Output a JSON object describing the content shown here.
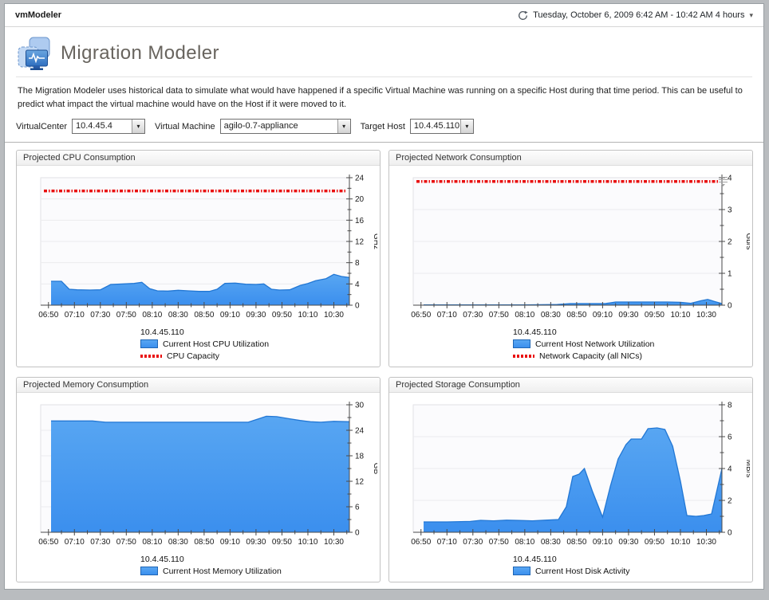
{
  "window": {
    "app_title": "vmModeler",
    "date_range": "Tuesday, October 6, 2009 6:42 AM - 10:42 AM 4 hours"
  },
  "icons": {
    "caret": "▾",
    "time_range": "clock-refresh-icon",
    "chart_options": "chart-options-menu-icon",
    "app": "migration-modeler-monitor-icon"
  },
  "header": {
    "title": "Migration Modeler",
    "description": "The Migration Modeler uses historical data to simulate what would have happened if a specific Virtual Machine was running on a specific Host during that time period. This can be useful to predict what impact the virtual machine would have on the Host if it were moved to it."
  },
  "controls": {
    "virtualcenter_label": "VirtualCenter",
    "virtualcenter_value": "10.4.45.4",
    "vm_label": "Virtual Machine",
    "vm_value": "agilo-0.7-appliance",
    "target_host_label": "Target Host",
    "target_host_value": "10.4.45.110"
  },
  "colors": {
    "area_fill_top": "#58a6f2",
    "area_fill_bottom": "#3b8fee",
    "area_stroke": "#2277d4",
    "capacity_red": "#e91010",
    "axis": "#4a4a4a",
    "grid": "#ebebee",
    "plot_bg": "#fbfbfd"
  },
  "chart_data": [
    {
      "id": "cpu",
      "type": "area",
      "panel_title": "Projected CPU Consumption",
      "unit": "GHz",
      "ylim": [
        0,
        24
      ],
      "y_major": 4,
      "y_minor": 2,
      "y_ticks": [
        0,
        4,
        8,
        12,
        16,
        20,
        24
      ],
      "x_start": "06:44",
      "x_end": "10:42",
      "x_ticks": [
        "06:50",
        "07:10",
        "07:30",
        "07:50",
        "08:10",
        "08:30",
        "08:50",
        "09:10",
        "09:30",
        "09:50",
        "10:10",
        "10:30"
      ],
      "capacity": 21.5,
      "series_label": "10.4.45.110",
      "legend": [
        {
          "swatch": "area",
          "label": "Current Host CPU Utilization"
        },
        {
          "swatch": "capacity",
          "label": "CPU Capacity"
        }
      ],
      "points": [
        [
          "06:52",
          4.5
        ],
        [
          "07:00",
          4.5
        ],
        [
          "07:06",
          3.0
        ],
        [
          "07:12",
          2.9
        ],
        [
          "07:22",
          2.85
        ],
        [
          "07:30",
          2.9
        ],
        [
          "07:38",
          3.9
        ],
        [
          "07:48",
          4.0
        ],
        [
          "07:56",
          4.1
        ],
        [
          "08:02",
          4.3
        ],
        [
          "08:08",
          3.1
        ],
        [
          "08:14",
          2.7
        ],
        [
          "08:22",
          2.65
        ],
        [
          "08:30",
          2.8
        ],
        [
          "08:38",
          2.7
        ],
        [
          "08:46",
          2.6
        ],
        [
          "08:54",
          2.6
        ],
        [
          "09:00",
          3.0
        ],
        [
          "09:06",
          4.1
        ],
        [
          "09:14",
          4.15
        ],
        [
          "09:22",
          3.95
        ],
        [
          "09:30",
          3.9
        ],
        [
          "09:36",
          4.0
        ],
        [
          "09:42",
          3.0
        ],
        [
          "09:48",
          2.85
        ],
        [
          "09:56",
          2.9
        ],
        [
          "10:04",
          3.7
        ],
        [
          "10:10",
          4.1
        ],
        [
          "10:16",
          4.6
        ],
        [
          "10:24",
          5.0
        ],
        [
          "10:30",
          5.8
        ],
        [
          "10:36",
          5.4
        ],
        [
          "10:42",
          5.2
        ]
      ]
    },
    {
      "id": "network",
      "type": "area",
      "panel_title": "Projected Network Consumption",
      "unit": "Gb/s",
      "ylim": [
        0,
        4
      ],
      "y_major": 1,
      "y_minor": 0.5,
      "y_ticks": [
        0,
        1,
        2,
        3,
        4
      ],
      "x_start": "06:44",
      "x_end": "10:42",
      "x_ticks": [
        "06:50",
        "07:10",
        "07:30",
        "07:50",
        "08:10",
        "08:30",
        "08:50",
        "09:10",
        "09:30",
        "09:50",
        "10:10",
        "10:30"
      ],
      "capacity": 3.88,
      "series_label": "10.4.45.110",
      "legend": [
        {
          "swatch": "area",
          "label": "Current Host Network Utilization"
        },
        {
          "swatch": "capacity",
          "label": "Network Capacity (all NICs)"
        }
      ],
      "points": [
        [
          "06:52",
          0.01
        ],
        [
          "07:30",
          0.01
        ],
        [
          "08:10",
          0.01
        ],
        [
          "08:35",
          0.02
        ],
        [
          "08:45",
          0.05
        ],
        [
          "09:00",
          0.05
        ],
        [
          "09:12",
          0.05
        ],
        [
          "09:20",
          0.1
        ],
        [
          "09:40",
          0.1
        ],
        [
          "10:00",
          0.1
        ],
        [
          "10:10",
          0.09
        ],
        [
          "10:18",
          0.06
        ],
        [
          "10:26",
          0.14
        ],
        [
          "10:31",
          0.18
        ],
        [
          "10:36",
          0.12
        ],
        [
          "10:42",
          0.05
        ]
      ]
    },
    {
      "id": "memory",
      "type": "area",
      "panel_title": "Projected Memory Consumption",
      "unit": "GB",
      "ylim": [
        0,
        30
      ],
      "y_major": 6,
      "y_minor": 3,
      "y_ticks": [
        0,
        6,
        12,
        18,
        24,
        30
      ],
      "x_start": "06:44",
      "x_end": "10:42",
      "x_ticks": [
        "06:50",
        "07:10",
        "07:30",
        "07:50",
        "08:10",
        "08:30",
        "08:50",
        "09:10",
        "09:30",
        "09:50",
        "10:10",
        "10:30"
      ],
      "capacity": null,
      "series_label": "10.4.45.110",
      "legend": [
        {
          "swatch": "area",
          "label": "Current Host Memory Utilization"
        }
      ],
      "points": [
        [
          "06:52",
          26.2
        ],
        [
          "07:10",
          26.2
        ],
        [
          "07:24",
          26.2
        ],
        [
          "07:34",
          25.9
        ],
        [
          "08:00",
          25.9
        ],
        [
          "08:30",
          25.9
        ],
        [
          "09:00",
          25.9
        ],
        [
          "09:24",
          25.9
        ],
        [
          "09:32",
          26.7
        ],
        [
          "09:38",
          27.3
        ],
        [
          "09:46",
          27.2
        ],
        [
          "09:56",
          26.7
        ],
        [
          "10:04",
          26.3
        ],
        [
          "10:12",
          26.0
        ],
        [
          "10:20",
          25.9
        ],
        [
          "10:30",
          26.1
        ],
        [
          "10:42",
          26.0
        ]
      ]
    },
    {
      "id": "storage",
      "type": "area",
      "panel_title": "Projected Storage Consumption",
      "unit": "MB/s",
      "ylim": [
        0,
        8
      ],
      "y_major": 2,
      "y_minor": 1,
      "y_ticks": [
        0,
        2,
        4,
        6,
        8
      ],
      "x_start": "06:44",
      "x_end": "10:42",
      "x_ticks": [
        "06:50",
        "07:10",
        "07:30",
        "07:50",
        "08:10",
        "08:30",
        "08:50",
        "09:10",
        "09:30",
        "09:50",
        "10:10",
        "10:30"
      ],
      "capacity": null,
      "series_label": "10.4.45.110",
      "legend": [
        {
          "swatch": "area",
          "label": "Current Host Disk Activity"
        }
      ],
      "points": [
        [
          "06:52",
          0.65
        ],
        [
          "07:10",
          0.65
        ],
        [
          "07:28",
          0.68
        ],
        [
          "07:36",
          0.75
        ],
        [
          "07:46",
          0.72
        ],
        [
          "07:56",
          0.76
        ],
        [
          "08:06",
          0.74
        ],
        [
          "08:16",
          0.72
        ],
        [
          "08:26",
          0.76
        ],
        [
          "08:36",
          0.8
        ],
        [
          "08:42",
          1.6
        ],
        [
          "08:47",
          3.5
        ],
        [
          "08:52",
          3.65
        ],
        [
          "08:56",
          4.0
        ],
        [
          "09:02",
          2.6
        ],
        [
          "09:10",
          0.95
        ],
        [
          "09:16",
          2.9
        ],
        [
          "09:22",
          4.6
        ],
        [
          "09:28",
          5.5
        ],
        [
          "09:32",
          5.85
        ],
        [
          "09:40",
          5.85
        ],
        [
          "09:45",
          6.5
        ],
        [
          "09:52",
          6.55
        ],
        [
          "09:58",
          6.45
        ],
        [
          "10:04",
          5.4
        ],
        [
          "10:10",
          3.2
        ],
        [
          "10:15",
          1.05
        ],
        [
          "10:22",
          1.0
        ],
        [
          "10:28",
          1.05
        ],
        [
          "10:34",
          1.15
        ],
        [
          "10:42",
          4.0
        ]
      ]
    }
  ]
}
